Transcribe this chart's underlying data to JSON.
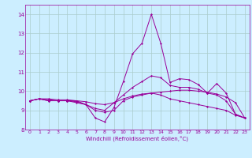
{
  "x": [
    0,
    1,
    2,
    3,
    4,
    5,
    6,
    7,
    8,
    9,
    10,
    11,
    12,
    13,
    14,
    15,
    16,
    17,
    18,
    19,
    20,
    21,
    22,
    23
  ],
  "line1": [
    9.5,
    9.6,
    9.5,
    9.5,
    9.5,
    9.5,
    9.3,
    8.6,
    8.4,
    9.15,
    10.5,
    11.95,
    12.5,
    14.0,
    12.5,
    10.45,
    10.65,
    10.6,
    10.35,
    9.9,
    10.4,
    9.9,
    8.8,
    8.6
  ],
  "line2": [
    9.5,
    9.6,
    9.5,
    9.5,
    9.5,
    9.4,
    9.3,
    9.1,
    9.0,
    9.4,
    9.8,
    10.2,
    10.5,
    10.8,
    10.7,
    10.3,
    10.2,
    10.2,
    10.1,
    9.9,
    9.8,
    9.5,
    8.8,
    8.6
  ],
  "line3": [
    9.5,
    9.6,
    9.6,
    9.55,
    9.55,
    9.5,
    9.45,
    9.35,
    9.3,
    9.4,
    9.6,
    9.75,
    9.85,
    9.9,
    9.95,
    10.0,
    10.05,
    10.05,
    10.0,
    9.95,
    9.85,
    9.7,
    9.4,
    8.6
  ],
  "line4": [
    9.5,
    9.6,
    9.55,
    9.5,
    9.5,
    9.45,
    9.3,
    9.0,
    8.9,
    9.0,
    9.5,
    9.7,
    9.8,
    9.9,
    9.8,
    9.6,
    9.5,
    9.4,
    9.3,
    9.2,
    9.1,
    9.0,
    8.75,
    8.6
  ],
  "color": "#990099",
  "bg_color": "#cceeff",
  "grid_color": "#aacccc",
  "xlabel": "Windchill (Refroidissement éolien,°C)",
  "ylim": [
    8.0,
    14.5
  ],
  "xlim": [
    -0.5,
    23.5
  ],
  "yticks": [
    8,
    9,
    10,
    11,
    12,
    13,
    14
  ],
  "xticks": [
    0,
    1,
    2,
    3,
    4,
    5,
    6,
    7,
    8,
    9,
    10,
    11,
    12,
    13,
    14,
    15,
    16,
    17,
    18,
    19,
    20,
    21,
    22,
    23
  ]
}
